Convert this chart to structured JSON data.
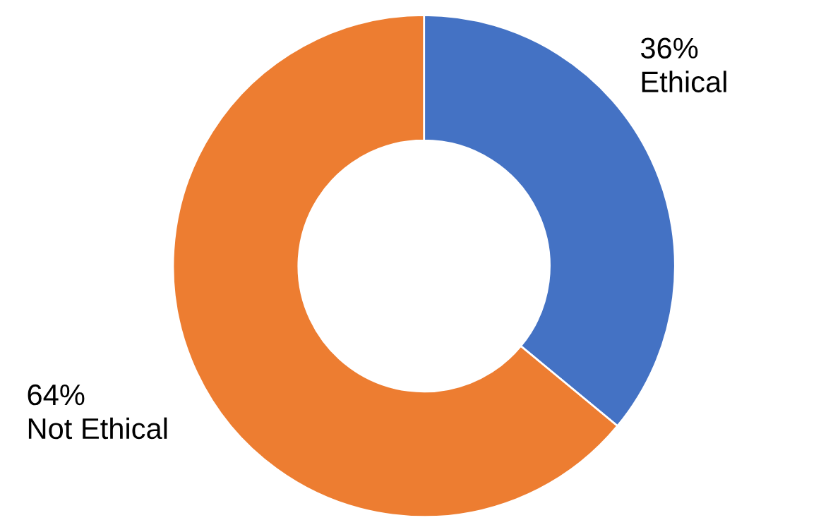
{
  "chart_data": {
    "type": "donut",
    "categories": [
      "Ethical",
      "Not Ethical"
    ],
    "values": [
      36,
      64
    ],
    "colors": [
      "#4472c4",
      "#ed7d31"
    ],
    "value_labels": [
      "36%",
      "64%"
    ],
    "legend": false
  }
}
